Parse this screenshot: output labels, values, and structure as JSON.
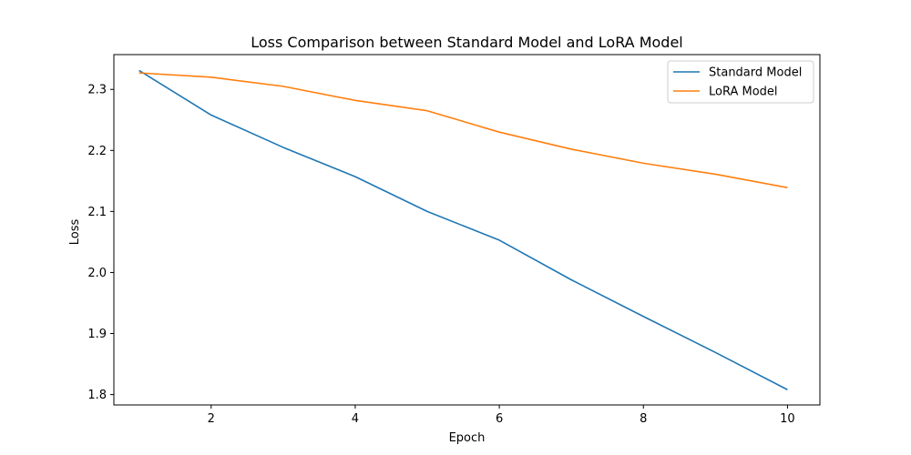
{
  "chart_data": {
    "type": "line",
    "title": "Loss Comparison between Standard Model and LoRA Model",
    "xlabel": "Epoch",
    "ylabel": "Loss",
    "x": [
      1,
      2,
      3,
      4,
      5,
      6,
      7,
      8,
      9,
      10
    ],
    "xlim": [
      0.65,
      10.45
    ],
    "ylim": [
      1.783,
      2.357
    ],
    "xticks": [
      2,
      4,
      6,
      8,
      10
    ],
    "yticks": [
      1.8,
      1.9,
      2.0,
      2.1,
      2.2,
      2.3
    ],
    "xtick_labels": [
      "2",
      "4",
      "6",
      "8",
      "10"
    ],
    "ytick_labels": [
      "1.8",
      "1.9",
      "2.0",
      "2.1",
      "2.2",
      "2.3"
    ],
    "grid": false,
    "legend_position": "top-right",
    "series": [
      {
        "name": "Standard Model",
        "color": "#1f77b4",
        "values": [
          2.331,
          2.258,
          2.205,
          2.157,
          2.1,
          2.053,
          1.988,
          1.928,
          1.869,
          1.808
        ]
      },
      {
        "name": "LoRA Model",
        "color": "#ff7f0e",
        "values": [
          2.327,
          2.32,
          2.305,
          2.282,
          2.265,
          2.23,
          2.202,
          2.179,
          2.161,
          2.139
        ]
      }
    ]
  }
}
